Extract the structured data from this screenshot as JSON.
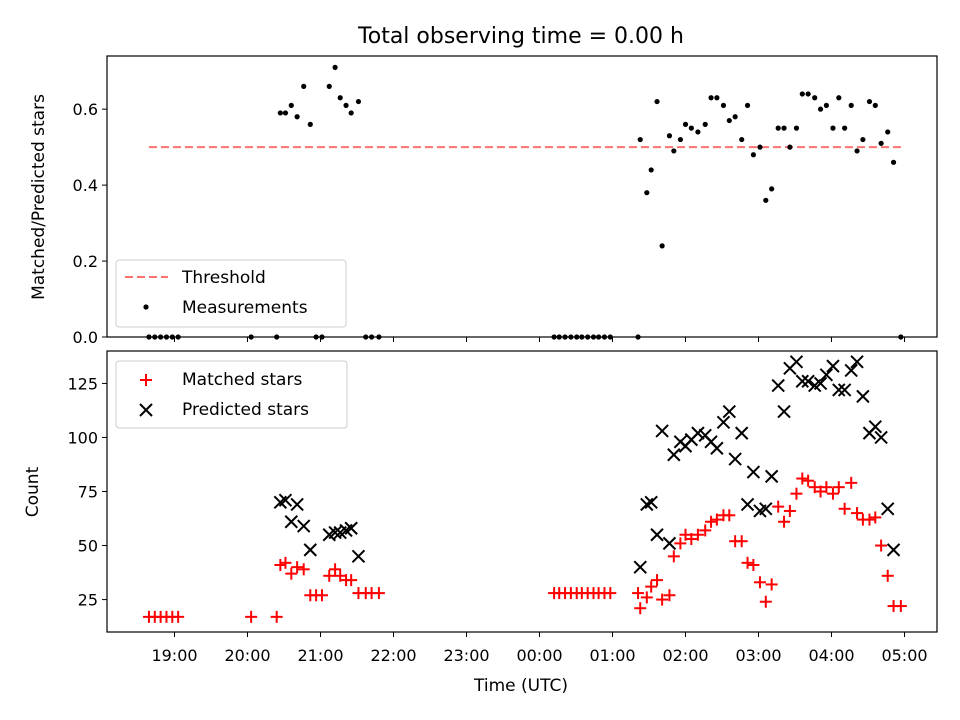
{
  "title": "Total observing time = 0.00 h",
  "chart_data": [
    {
      "type": "scatter",
      "ylabel": "Matched/Predicted stars",
      "ylim": [
        0,
        0.74
      ],
      "yticks": [
        "0.0",
        "0.2",
        "0.4",
        "0.6"
      ],
      "ytick_values": [
        0,
        0.2,
        0.4,
        0.6
      ],
      "threshold": {
        "name": "Threshold",
        "value": 0.5,
        "x_start": 18.65,
        "x_end": 4.95,
        "color": "#ff7070"
      },
      "series": [
        {
          "name": "Measurements",
          "color": "#000000",
          "points": [
            [
              18.65,
              0
            ],
            [
              18.73,
              0
            ],
            [
              18.81,
              0
            ],
            [
              18.89,
              0
            ],
            [
              18.97,
              0
            ],
            [
              19.05,
              0
            ],
            [
              20.05,
              0
            ],
            [
              20.4,
              0
            ],
            [
              20.45,
              0.59
            ],
            [
              20.52,
              0.59
            ],
            [
              20.6,
              0.61
            ],
            [
              20.68,
              0.58
            ],
            [
              20.77,
              0.66
            ],
            [
              20.86,
              0.56
            ],
            [
              20.94,
              0
            ],
            [
              21.02,
              0
            ],
            [
              21.12,
              0.66
            ],
            [
              21.2,
              0.71
            ],
            [
              21.27,
              0.63
            ],
            [
              21.35,
              0.61
            ],
            [
              21.42,
              0.59
            ],
            [
              21.52,
              0.62
            ],
            [
              21.62,
              0
            ],
            [
              21.7,
              0
            ],
            [
              21.8,
              0
            ],
            [
              0.2,
              0
            ],
            [
              0.27,
              0
            ],
            [
              0.35,
              0
            ],
            [
              0.43,
              0
            ],
            [
              0.51,
              0
            ],
            [
              0.58,
              0
            ],
            [
              0.66,
              0
            ],
            [
              0.74,
              0
            ],
            [
              0.81,
              0
            ],
            [
              0.89,
              0
            ],
            [
              0.97,
              0
            ],
            [
              1.35,
              0
            ],
            [
              1.38,
              0.52
            ],
            [
              1.47,
              0.38
            ],
            [
              1.53,
              0.44
            ],
            [
              1.61,
              0.62
            ],
            [
              1.68,
              0.24
            ],
            [
              1.78,
              0.53
            ],
            [
              1.84,
              0.49
            ],
            [
              1.93,
              0.52
            ],
            [
              2.0,
              0.56
            ],
            [
              2.08,
              0.55
            ],
            [
              2.17,
              0.54
            ],
            [
              2.27,
              0.56
            ],
            [
              2.35,
              0.63
            ],
            [
              2.43,
              0.63
            ],
            [
              2.52,
              0.61
            ],
            [
              2.6,
              0.57
            ],
            [
              2.68,
              0.58
            ],
            [
              2.77,
              0.52
            ],
            [
              2.85,
              0.61
            ],
            [
              2.93,
              0.48
            ],
            [
              3.02,
              0.5
            ],
            [
              3.1,
              0.36
            ],
            [
              3.18,
              0.39
            ],
            [
              3.27,
              0.55
            ],
            [
              3.35,
              0.55
            ],
            [
              3.43,
              0.5
            ],
            [
              3.52,
              0.55
            ],
            [
              3.6,
              0.64
            ],
            [
              3.68,
              0.64
            ],
            [
              3.77,
              0.63
            ],
            [
              3.85,
              0.6
            ],
            [
              3.93,
              0.61
            ],
            [
              4.02,
              0.55
            ],
            [
              4.1,
              0.63
            ],
            [
              4.18,
              0.55
            ],
            [
              4.27,
              0.61
            ],
            [
              4.35,
              0.49
            ],
            [
              4.43,
              0.52
            ],
            [
              4.52,
              0.62
            ],
            [
              4.6,
              0.61
            ],
            [
              4.68,
              0.51
            ],
            [
              4.77,
              0.54
            ],
            [
              4.85,
              0.46
            ],
            [
              4.95,
              0
            ]
          ]
        }
      ],
      "legend": {
        "position": "lower-left",
        "entries": [
          "Threshold",
          "Measurements"
        ]
      }
    },
    {
      "type": "scatter",
      "xlabel": "Time (UTC)",
      "ylabel": "Count",
      "ylim": [
        10,
        140
      ],
      "xticks": [
        "19:00",
        "20:00",
        "21:00",
        "22:00",
        "23:00",
        "00:00",
        "01:00",
        "02:00",
        "03:00",
        "04:00",
        "05:00"
      ],
      "yticks": [
        "25",
        "50",
        "75",
        "100",
        "125"
      ],
      "ytick_values": [
        25,
        50,
        75,
        100,
        125
      ],
      "series": [
        {
          "name": "Matched stars",
          "marker": "plus",
          "color": "#ff0000",
          "points": [
            [
              18.65,
              17
            ],
            [
              18.73,
              17
            ],
            [
              18.81,
              17
            ],
            [
              18.89,
              17
            ],
            [
              18.97,
              17
            ],
            [
              19.05,
              17
            ],
            [
              20.05,
              17
            ],
            [
              20.4,
              17
            ],
            [
              20.45,
              41
            ],
            [
              20.52,
              42
            ],
            [
              20.6,
              37
            ],
            [
              20.68,
              40
            ],
            [
              20.77,
              39
            ],
            [
              20.86,
              27
            ],
            [
              20.94,
              27
            ],
            [
              21.02,
              27
            ],
            [
              21.12,
              36
            ],
            [
              21.2,
              39
            ],
            [
              21.27,
              36
            ],
            [
              21.35,
              34
            ],
            [
              21.42,
              34
            ],
            [
              21.52,
              28
            ],
            [
              21.62,
              28
            ],
            [
              21.7,
              28
            ],
            [
              21.8,
              28
            ],
            [
              0.2,
              28
            ],
            [
              0.27,
              28
            ],
            [
              0.35,
              28
            ],
            [
              0.43,
              28
            ],
            [
              0.51,
              28
            ],
            [
              0.58,
              28
            ],
            [
              0.66,
              28
            ],
            [
              0.74,
              28
            ],
            [
              0.81,
              28
            ],
            [
              0.89,
              28
            ],
            [
              0.97,
              28
            ],
            [
              1.35,
              28
            ],
            [
              1.38,
              21
            ],
            [
              1.47,
              26
            ],
            [
              1.53,
              31
            ],
            [
              1.61,
              34
            ],
            [
              1.68,
              25
            ],
            [
              1.78,
              27
            ],
            [
              1.84,
              45
            ],
            [
              1.93,
              51
            ],
            [
              2.0,
              55
            ],
            [
              2.08,
              53
            ],
            [
              2.17,
              55
            ],
            [
              2.27,
              57
            ],
            [
              2.35,
              61
            ],
            [
              2.43,
              62
            ],
            [
              2.52,
              64
            ],
            [
              2.6,
              64
            ],
            [
              2.68,
              52
            ],
            [
              2.77,
              52
            ],
            [
              2.85,
              42
            ],
            [
              2.93,
              41
            ],
            [
              3.02,
              33
            ],
            [
              3.1,
              24
            ],
            [
              3.18,
              32
            ],
            [
              3.27,
              68
            ],
            [
              3.35,
              61
            ],
            [
              3.43,
              66
            ],
            [
              3.52,
              74
            ],
            [
              3.6,
              81
            ],
            [
              3.68,
              80
            ],
            [
              3.77,
              77
            ],
            [
              3.85,
              75
            ],
            [
              3.93,
              77
            ],
            [
              4.02,
              74
            ],
            [
              4.1,
              77
            ],
            [
              4.18,
              67
            ],
            [
              4.27,
              79
            ],
            [
              4.35,
              65
            ],
            [
              4.43,
              62
            ],
            [
              4.52,
              62
            ],
            [
              4.6,
              63
            ],
            [
              4.68,
              50
            ],
            [
              4.77,
              36
            ],
            [
              4.85,
              22
            ],
            [
              4.95,
              22
            ]
          ]
        },
        {
          "name": "Predicted stars",
          "marker": "cross",
          "color": "#000000",
          "points": [
            [
              20.45,
              70
            ],
            [
              20.52,
              71
            ],
            [
              20.6,
              61
            ],
            [
              20.68,
              69
            ],
            [
              20.77,
              59
            ],
            [
              20.86,
              48
            ],
            [
              21.12,
              55
            ],
            [
              21.2,
              56
            ],
            [
              21.27,
              56
            ],
            [
              21.35,
              57
            ],
            [
              21.42,
              58
            ],
            [
              21.52,
              45
            ],
            [
              1.38,
              40
            ],
            [
              1.47,
              69
            ],
            [
              1.53,
              70
            ],
            [
              1.61,
              55
            ],
            [
              1.68,
              103
            ],
            [
              1.78,
              51
            ],
            [
              1.84,
              92
            ],
            [
              1.93,
              98
            ],
            [
              2.0,
              96
            ],
            [
              2.08,
              99
            ],
            [
              2.17,
              102
            ],
            [
              2.27,
              101
            ],
            [
              2.35,
              98
            ],
            [
              2.43,
              95
            ],
            [
              2.52,
              107
            ],
            [
              2.6,
              112
            ],
            [
              2.68,
              90
            ],
            [
              2.77,
              102
            ],
            [
              2.85,
              69
            ],
            [
              2.93,
              84
            ],
            [
              3.02,
              66
            ],
            [
              3.1,
              67
            ],
            [
              3.18,
              82
            ],
            [
              3.27,
              124
            ],
            [
              3.35,
              112
            ],
            [
              3.43,
              132
            ],
            [
              3.52,
              135
            ],
            [
              3.6,
              126
            ],
            [
              3.68,
              126
            ],
            [
              3.77,
              124
            ],
            [
              3.85,
              125
            ],
            [
              3.93,
              129
            ],
            [
              4.02,
              133
            ],
            [
              4.1,
              122
            ],
            [
              4.18,
              122
            ],
            [
              4.27,
              131
            ],
            [
              4.35,
              135
            ],
            [
              4.43,
              119
            ],
            [
              4.52,
              102
            ],
            [
              4.6,
              105
            ],
            [
              4.68,
              100
            ],
            [
              4.77,
              67
            ],
            [
              4.85,
              48
            ]
          ]
        }
      ],
      "legend": {
        "position": "upper-left",
        "entries": [
          "Matched stars",
          "Predicted stars"
        ]
      }
    }
  ]
}
